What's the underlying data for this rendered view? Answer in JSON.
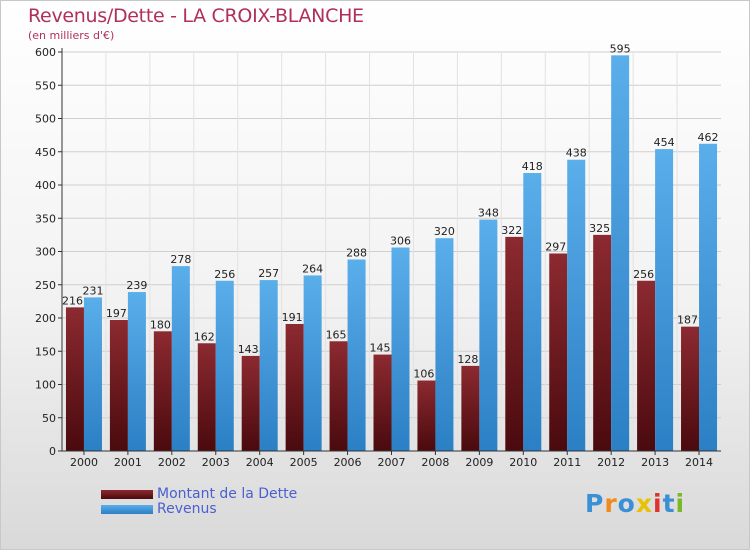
{
  "chart_data": {
    "type": "bar",
    "title": "Revenus/Dette - LA CROIX-BLANCHE",
    "subtitle": "(en milliers d'€)",
    "xlabel": "",
    "ylabel": "",
    "ylim": [
      0,
      600
    ],
    "y_ticks": [
      0,
      50,
      100,
      150,
      200,
      250,
      300,
      350,
      400,
      450,
      500,
      550,
      600
    ],
    "grid": true,
    "legend_position": "bottom-left",
    "categories": [
      "2000",
      "2001",
      "2002",
      "2003",
      "2004",
      "2005",
      "2006",
      "2007",
      "2008",
      "2009",
      "2010",
      "2011",
      "2012",
      "2013",
      "2014"
    ],
    "series": [
      {
        "name": "Montant de la Dette",
        "color": "#7a1e24",
        "values": [
          216,
          197,
          180,
          162,
          143,
          191,
          165,
          145,
          106,
          128,
          322,
          297,
          325,
          256,
          187
        ]
      },
      {
        "name": "Revenus",
        "color": "#4aa3e4",
        "values": [
          231,
          239,
          278,
          256,
          257,
          264,
          288,
          306,
          320,
          348,
          418,
          438,
          595,
          454,
          462
        ]
      }
    ]
  },
  "logo": {
    "text": "Proxiti"
  }
}
